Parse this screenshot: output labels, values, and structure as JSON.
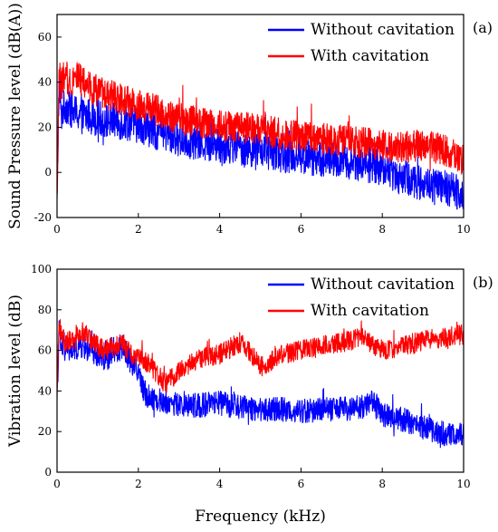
{
  "chart_data": [
    {
      "type": "line",
      "panel_label": "(a)",
      "xlabel": "",
      "ylabel": "Sound Pressure level (dB(A))",
      "xlim": [
        0,
        10
      ],
      "ylim": [
        -20,
        70
      ],
      "x_ticks": [
        0,
        2,
        4,
        6,
        8,
        10
      ],
      "y_ticks": [
        -20,
        0,
        20,
        40,
        60
      ],
      "grid": false,
      "legend_position": "top-right",
      "series": [
        {
          "name": "Without cavitation",
          "color": "#0000ff",
          "x": [
            0,
            0.05,
            0.1,
            0.15,
            0.2,
            0.3,
            0.4,
            0.5,
            0.6,
            0.8,
            1.0,
            1.2,
            1.4,
            1.6,
            1.8,
            2.0,
            2.2,
            2.4,
            2.6,
            2.8,
            3.0,
            3.5,
            4.0,
            4.5,
            5.0,
            5.5,
            6.0,
            6.5,
            7.0,
            7.5,
            8.0,
            8.5,
            9.0,
            9.5,
            10.0
          ],
          "values": [
            -15,
            40,
            25,
            28,
            30,
            28,
            27,
            26,
            25,
            25,
            24,
            23,
            23,
            22,
            22,
            21,
            20,
            18,
            17,
            16,
            15,
            13,
            12,
            11,
            10,
            8,
            7,
            6,
            5,
            4,
            2,
            -2,
            -5,
            -7,
            -9
          ],
          "noise": 8
        },
        {
          "name": "With cavitation",
          "color": "#ff0000",
          "x": [
            0,
            0.05,
            0.1,
            0.15,
            0.2,
            0.3,
            0.4,
            0.5,
            0.6,
            0.8,
            1.0,
            1.2,
            1.4,
            1.6,
            1.8,
            2.0,
            2.2,
            2.4,
            2.6,
            2.8,
            3.0,
            3.5,
            4.0,
            4.5,
            5.0,
            5.5,
            6.0,
            6.5,
            7.0,
            7.5,
            8.0,
            8.5,
            9.0,
            9.5,
            10.0
          ],
          "values": [
            -18,
            45,
            38,
            42,
            40,
            40,
            42,
            44,
            40,
            38,
            36,
            34,
            34,
            32,
            31,
            30,
            29,
            28,
            26,
            25,
            24,
            22,
            21,
            20,
            19,
            17,
            16,
            15,
            14,
            13,
            12,
            11,
            12,
            10,
            5
          ],
          "noise": 7
        }
      ]
    },
    {
      "type": "line",
      "panel_label": "(b)",
      "xlabel": "Frequency (kHz)",
      "ylabel": "Vibration level (dB)",
      "xlim": [
        0,
        10
      ],
      "ylim": [
        0,
        100
      ],
      "x_ticks": [
        0,
        2,
        4,
        6,
        8,
        10
      ],
      "y_ticks": [
        0,
        20,
        40,
        60,
        80,
        100
      ],
      "grid": false,
      "legend_position": "top-right",
      "series": [
        {
          "name": "Without cavitation",
          "color": "#0000ff",
          "x": [
            0,
            0.05,
            0.1,
            0.15,
            0.2,
            0.4,
            0.6,
            0.8,
            1.0,
            1.2,
            1.4,
            1.6,
            1.8,
            2.0,
            2.1,
            2.2,
            2.4,
            2.6,
            2.8,
            3.0,
            3.5,
            4.0,
            4.5,
            5.0,
            5.5,
            6.0,
            6.5,
            7.0,
            7.5,
            7.8,
            8.0,
            8.5,
            9.0,
            9.5,
            10.0
          ],
          "values": [
            35,
            70,
            60,
            62,
            60,
            60,
            62,
            60,
            58,
            56,
            58,
            62,
            55,
            50,
            42,
            38,
            36,
            35,
            34,
            33,
            33,
            34,
            32,
            31,
            31,
            30,
            31,
            31,
            32,
            36,
            28,
            26,
            22,
            19,
            18
          ],
          "noise": 6
        },
        {
          "name": "With cavitation",
          "color": "#ff0000",
          "x": [
            0,
            0.05,
            0.1,
            0.15,
            0.2,
            0.4,
            0.6,
            0.8,
            1.0,
            1.2,
            1.4,
            1.6,
            1.8,
            2.0,
            2.2,
            2.4,
            2.6,
            2.7,
            3.0,
            3.5,
            4.0,
            4.5,
            4.8,
            5.0,
            5.2,
            5.5,
            6.0,
            6.5,
            7.0,
            7.5,
            8.0,
            8.5,
            9.0,
            9.5,
            10.0
          ],
          "values": [
            38,
            75,
            68,
            66,
            64,
            66,
            70,
            66,
            62,
            60,
            62,
            64,
            58,
            58,
            54,
            50,
            45,
            44,
            50,
            56,
            58,
            64,
            58,
            52,
            54,
            58,
            60,
            62,
            64,
            66,
            60,
            62,
            65,
            66,
            68
          ],
          "noise": 5
        }
      ]
    }
  ]
}
